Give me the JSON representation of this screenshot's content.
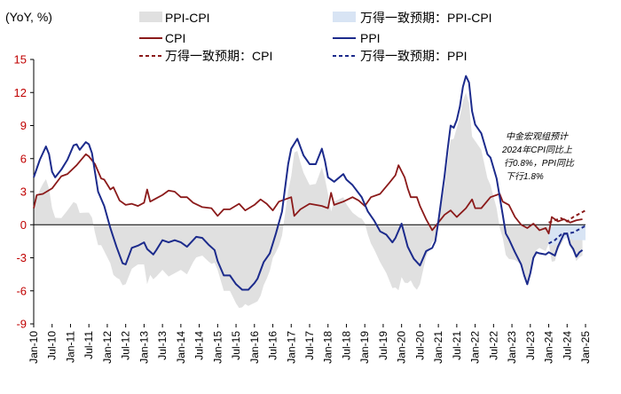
{
  "chart_data": {
    "type": "line",
    "unit_label": "(YoY, %)",
    "ylim": [
      -9,
      15
    ],
    "yticks": [
      15,
      12,
      9,
      6,
      3,
      0,
      -3,
      -6,
      -9
    ],
    "x_start": "2010-01",
    "x_end": "2025-01",
    "xticks": [
      "Jan-10",
      "Jul-10",
      "Jan-11",
      "Jul-11",
      "Jan-12",
      "Jul-12",
      "Jan-13",
      "Jul-13",
      "Jan-14",
      "Jul-14",
      "Jan-15",
      "Jul-15",
      "Jan-16",
      "Jul-16",
      "Jan-17",
      "Jul-17",
      "Jan-18",
      "Jul-18",
      "Jan-19",
      "Jul-19",
      "Jan-20",
      "Jul-20",
      "Jan-21",
      "Jul-21",
      "Jan-22",
      "Jul-22",
      "Jan-23",
      "Jul-23",
      "Jan-24",
      "Jul-24",
      "Jan-25"
    ],
    "legend": {
      "ppi_cpi": "PPI-CPI",
      "forecast_ppi_cpi": "万得一致预期：PPI-CPI",
      "cpi": "CPI",
      "ppi": "PPI",
      "forecast_cpi": "万得一致预期：CPI",
      "forecast_ppi": "万得一致预期：PPI"
    },
    "colors": {
      "cpi": "#8b1a1a",
      "ppi": "#1c2b8c",
      "ppi_cpi": "#e0e0e0",
      "forecast_ppi_cpi": "#d8e4f4",
      "axis_tick": "#c00000"
    },
    "annotation": [
      "中金宏观组预计",
      "2024年CPI同比上",
      "行0.8%，PPI同比",
      "下行1.8%"
    ],
    "cpi_knots": [
      [
        0,
        1.5
      ],
      [
        1,
        2.7
      ],
      [
        3,
        2.8
      ],
      [
        6,
        3.3
      ],
      [
        9,
        4.4
      ],
      [
        11,
        4.6
      ],
      [
        14,
        5.4
      ],
      [
        17,
        6.4
      ],
      [
        18,
        6.2
      ],
      [
        20,
        5.5
      ],
      [
        22,
        4.2
      ],
      [
        23,
        4.1
      ],
      [
        25,
        3.2
      ],
      [
        26,
        3.4
      ],
      [
        28,
        2.2
      ],
      [
        30,
        1.8
      ],
      [
        32,
        1.9
      ],
      [
        34,
        1.7
      ],
      [
        36,
        2.0
      ],
      [
        37,
        3.2
      ],
      [
        38,
        2.1
      ],
      [
        40,
        2.4
      ],
      [
        42,
        2.7
      ],
      [
        44,
        3.1
      ],
      [
        46,
        3.0
      ],
      [
        48,
        2.5
      ],
      [
        50,
        2.5
      ],
      [
        52,
        2.0
      ],
      [
        55,
        1.6
      ],
      [
        58,
        1.5
      ],
      [
        60,
        0.8
      ],
      [
        62,
        1.4
      ],
      [
        64,
        1.4
      ],
      [
        67,
        1.9
      ],
      [
        69,
        1.3
      ],
      [
        72,
        1.8
      ],
      [
        74,
        2.3
      ],
      [
        76,
        1.9
      ],
      [
        78,
        1.3
      ],
      [
        80,
        2.1
      ],
      [
        82,
        2.3
      ],
      [
        84,
        2.5
      ],
      [
        85,
        0.8
      ],
      [
        87,
        1.4
      ],
      [
        90,
        1.9
      ],
      [
        92,
        1.8
      ],
      [
        94,
        1.7
      ],
      [
        96,
        1.5
      ],
      [
        97,
        2.9
      ],
      [
        98,
        1.8
      ],
      [
        101,
        2.1
      ],
      [
        104,
        2.5
      ],
      [
        106,
        2.2
      ],
      [
        108,
        1.7
      ],
      [
        110,
        2.5
      ],
      [
        113,
        2.8
      ],
      [
        116,
        3.8
      ],
      [
        118,
        4.5
      ],
      [
        119,
        5.4
      ],
      [
        121,
        4.3
      ],
      [
        122,
        3.3
      ],
      [
        123,
        2.5
      ],
      [
        125,
        2.5
      ],
      [
        126,
        1.7
      ],
      [
        128,
        0.5
      ],
      [
        130,
        -0.5
      ],
      [
        132,
        0.2
      ],
      [
        134,
        0.9
      ],
      [
        136,
        1.3
      ],
      [
        138,
        0.7
      ],
      [
        141,
        1.5
      ],
      [
        143,
        2.3
      ],
      [
        144,
        1.5
      ],
      [
        146,
        1.5
      ],
      [
        149,
        2.5
      ],
      [
        152,
        2.8
      ],
      [
        153,
        2.1
      ],
      [
        155,
        1.8
      ],
      [
        157,
        0.7
      ],
      [
        159,
        0.0
      ],
      [
        161,
        -0.3
      ],
      [
        163,
        0.1
      ],
      [
        165,
        -0.5
      ],
      [
        167,
        -0.3
      ],
      [
        168,
        -0.8
      ],
      [
        169,
        0.7
      ],
      [
        171,
        0.3
      ],
      [
        173,
        0.5
      ],
      [
        175,
        0.2
      ],
      [
        177,
        0.4
      ],
      [
        179,
        0.5
      ]
    ],
    "ppi_knots": [
      [
        0,
        4.3
      ],
      [
        2,
        5.9
      ],
      [
        4,
        7.1
      ],
      [
        5,
        6.4
      ],
      [
        6,
        4.8
      ],
      [
        7,
        4.3
      ],
      [
        9,
        5.0
      ],
      [
        11,
        5.9
      ],
      [
        13,
        7.2
      ],
      [
        14,
        7.3
      ],
      [
        15,
        6.8
      ],
      [
        17,
        7.5
      ],
      [
        18,
        7.3
      ],
      [
        19,
        6.5
      ],
      [
        21,
        3.0
      ],
      [
        23,
        1.7
      ],
      [
        25,
        -0.3
      ],
      [
        27,
        -2.0
      ],
      [
        29,
        -3.5
      ],
      [
        30,
        -3.6
      ],
      [
        32,
        -2.1
      ],
      [
        34,
        -1.9
      ],
      [
        36,
        -1.6
      ],
      [
        37,
        -2.2
      ],
      [
        39,
        -2.7
      ],
      [
        40,
        -2.3
      ],
      [
        42,
        -1.4
      ],
      [
        44,
        -1.6
      ],
      [
        46,
        -1.4
      ],
      [
        48,
        -1.6
      ],
      [
        50,
        -2.0
      ],
      [
        53,
        -1.1
      ],
      [
        55,
        -1.2
      ],
      [
        57,
        -1.8
      ],
      [
        59,
        -2.3
      ],
      [
        60,
        -3.3
      ],
      [
        62,
        -4.6
      ],
      [
        64,
        -4.6
      ],
      [
        66,
        -5.4
      ],
      [
        68,
        -5.9
      ],
      [
        70,
        -5.9
      ],
      [
        72,
        -5.3
      ],
      [
        73,
        -4.9
      ],
      [
        75,
        -3.4
      ],
      [
        77,
        -2.6
      ],
      [
        79,
        -0.8
      ],
      [
        81,
        1.2
      ],
      [
        83,
        5.5
      ],
      [
        84,
        6.9
      ],
      [
        86,
        7.8
      ],
      [
        88,
        6.3
      ],
      [
        90,
        5.5
      ],
      [
        92,
        5.5
      ],
      [
        94,
        6.9
      ],
      [
        95,
        5.8
      ],
      [
        96,
        4.3
      ],
      [
        98,
        3.9
      ],
      [
        101,
        4.6
      ],
      [
        102,
        4.1
      ],
      [
        104,
        3.6
      ],
      [
        107,
        2.5
      ],
      [
        109,
        1.2
      ],
      [
        111,
        0.4
      ],
      [
        113,
        -0.6
      ],
      [
        115,
        -0.9
      ],
      [
        117,
        -1.6
      ],
      [
        118,
        -1.2
      ],
      [
        120,
        0.1
      ],
      [
        122,
        -2.0
      ],
      [
        124,
        -3.1
      ],
      [
        126,
        -3.7
      ],
      [
        128,
        -2.4
      ],
      [
        130,
        -2.1
      ],
      [
        131,
        -1.5
      ],
      [
        132,
        0.3
      ],
      [
        134,
        4.4
      ],
      [
        135,
        6.8
      ],
      [
        136,
        9.0
      ],
      [
        137,
        8.8
      ],
      [
        138,
        9.5
      ],
      [
        139,
        10.7
      ],
      [
        140,
        12.5
      ],
      [
        141,
        13.5
      ],
      [
        142,
        12.9
      ],
      [
        143,
        10.3
      ],
      [
        144,
        9.1
      ],
      [
        146,
        8.3
      ],
      [
        148,
        6.4
      ],
      [
        149,
        6.1
      ],
      [
        151,
        4.2
      ],
      [
        153,
        0.9
      ],
      [
        154,
        -0.8
      ],
      [
        155,
        -1.3
      ],
      [
        157,
        -2.5
      ],
      [
        159,
        -3.6
      ],
      [
        160,
        -4.6
      ],
      [
        161,
        -5.4
      ],
      [
        162,
        -4.4
      ],
      [
        163,
        -3.0
      ],
      [
        164,
        -2.5
      ],
      [
        165,
        -2.6
      ],
      [
        167,
        -2.7
      ],
      [
        168,
        -2.5
      ],
      [
        170,
        -2.8
      ],
      [
        171,
        -2.0
      ],
      [
        172,
        -1.4
      ],
      [
        173,
        -0.8
      ],
      [
        174,
        -0.8
      ],
      [
        175,
        -1.8
      ],
      [
        176,
        -2.2
      ],
      [
        177,
        -2.9
      ],
      [
        178,
        -2.5
      ],
      [
        179,
        -2.3
      ]
    ],
    "forecast_cpi_knots": [
      [
        168,
        0.2
      ],
      [
        170,
        0.4
      ],
      [
        172,
        0.6
      ],
      [
        174,
        0.3
      ],
      [
        176,
        0.7
      ],
      [
        178,
        1.0
      ],
      [
        180,
        1.3
      ]
    ],
    "forecast_ppi_knots": [
      [
        168,
        -1.7
      ],
      [
        170,
        -1.4
      ],
      [
        172,
        -0.9
      ],
      [
        174,
        -0.8
      ],
      [
        176,
        -0.7
      ],
      [
        178,
        -0.4
      ],
      [
        180,
        -0.1
      ]
    ]
  }
}
